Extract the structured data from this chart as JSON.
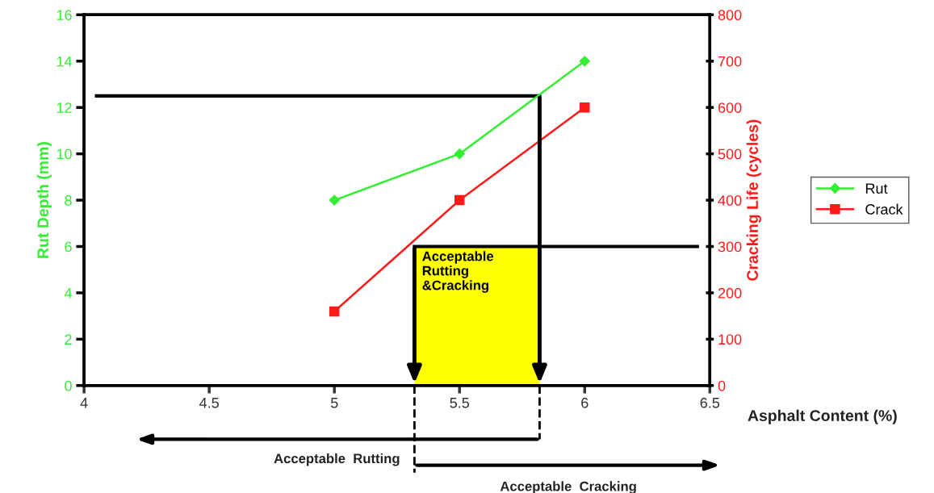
{
  "chart_data": {
    "type": "line",
    "xlabel": "Asphalt Content (%)",
    "ylabel": "Rut Depth (mm)",
    "y2label": "Cracking Life (cycles)",
    "x": [
      5,
      5.5,
      6
    ],
    "series": [
      {
        "name": "Rut",
        "color": "#33ee33",
        "values": [
          8,
          10,
          14
        ],
        "marker": "diamond"
      },
      {
        "name": "Crack",
        "color": "#ff1a1a",
        "values": [
          160,
          400,
          600
        ],
        "marker": "square",
        "axis": "y2"
      }
    ],
    "xlim": [
      4,
      6.5
    ],
    "xticks": [
      4,
      4.5,
      5,
      5.5,
      6,
      6.5
    ],
    "ylim": [
      0,
      16
    ],
    "yticks": [
      0,
      2,
      4,
      6,
      8,
      10,
      12,
      14,
      16
    ],
    "y2lim": [
      0,
      800
    ],
    "y2ticks": [
      0,
      100,
      200,
      300,
      400,
      500,
      600,
      700,
      800
    ],
    "ref_lines": [
      {
        "axis": "y",
        "value": 12.5,
        "color": "#000000"
      },
      {
        "axis": "y2",
        "value": 300,
        "color": "#000000"
      }
    ],
    "bands": [
      {
        "axis": "x",
        "from": 5.32,
        "to": 5.82,
        "label": "Acceptable\nRutting\n&Cracking",
        "color": "#ffff00"
      }
    ],
    "annotations": [
      "Acceptable  Rutting",
      "Acceptable  Cracking"
    ],
    "legend": "right",
    "grid": false
  }
}
